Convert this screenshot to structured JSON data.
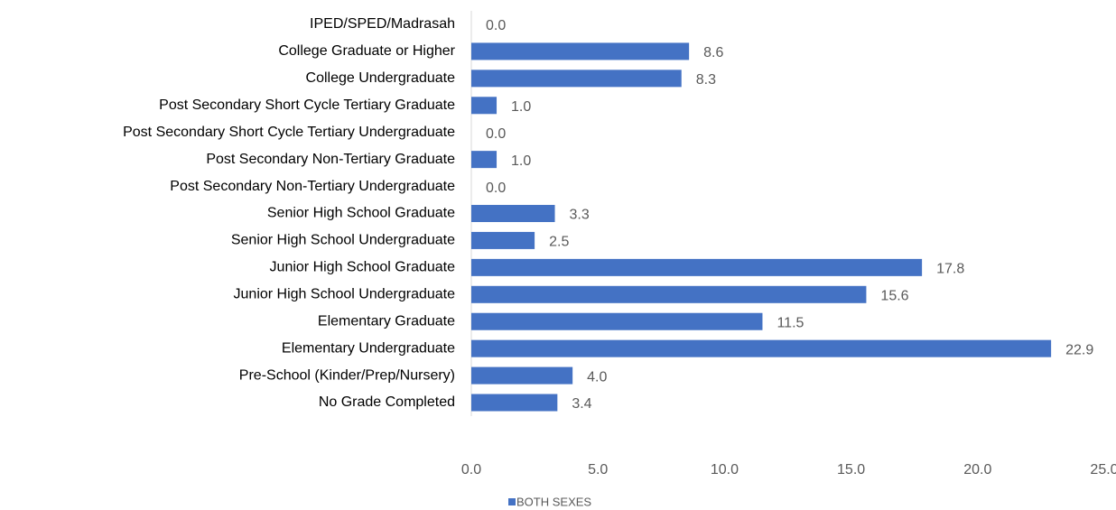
{
  "chart_data": {
    "type": "hbar",
    "categories": [
      "IPED/SPED/Madrasah",
      "College Graduate or Higher",
      "College Undergraduate",
      "Post Secondary Short Cycle Tertiary Graduate",
      "Post Secondary Short Cycle Tertiary Undergraduate",
      "Post Secondary Non-Tertiary Graduate",
      "Post Secondary Non-Tertiary Undergraduate",
      "Senior High School Graduate",
      "Senior High School Undergraduate",
      "Junior High School Graduate",
      "Junior High School Undergraduate",
      "Elementary Graduate",
      "Elementary Undergraduate",
      "Pre-School (Kinder/Prep/Nursery)",
      "No Grade Completed"
    ],
    "series": [
      {
        "name": "BOTH SEXES",
        "color": "#4472c4",
        "values": [
          0,
          8.6,
          8.3,
          1.0,
          0,
          1.0,
          0,
          3.3,
          2.5,
          17.8,
          15.6,
          11.5,
          22.9,
          4.0,
          3.4
        ],
        "value_labels": [
          "0.0",
          "8.6",
          "8.3",
          "1.0",
          "0.0",
          "1.0",
          "0.0",
          "3.3",
          "2.5",
          "17.8",
          "15.6",
          "11.5",
          "22.9",
          "4.0",
          "3.4"
        ]
      }
    ],
    "xlim": [
      0,
      25
    ],
    "xticks": [
      {
        "value": 0,
        "label": "0.0"
      },
      {
        "value": 5,
        "label": "5.0"
      },
      {
        "value": 10,
        "label": "10.0"
      },
      {
        "value": 15,
        "label": "15.0"
      },
      {
        "value": 20,
        "label": "20.0"
      },
      {
        "value": 25,
        "label": "25.0"
      }
    ],
    "grid": false,
    "legend": "bottom"
  }
}
